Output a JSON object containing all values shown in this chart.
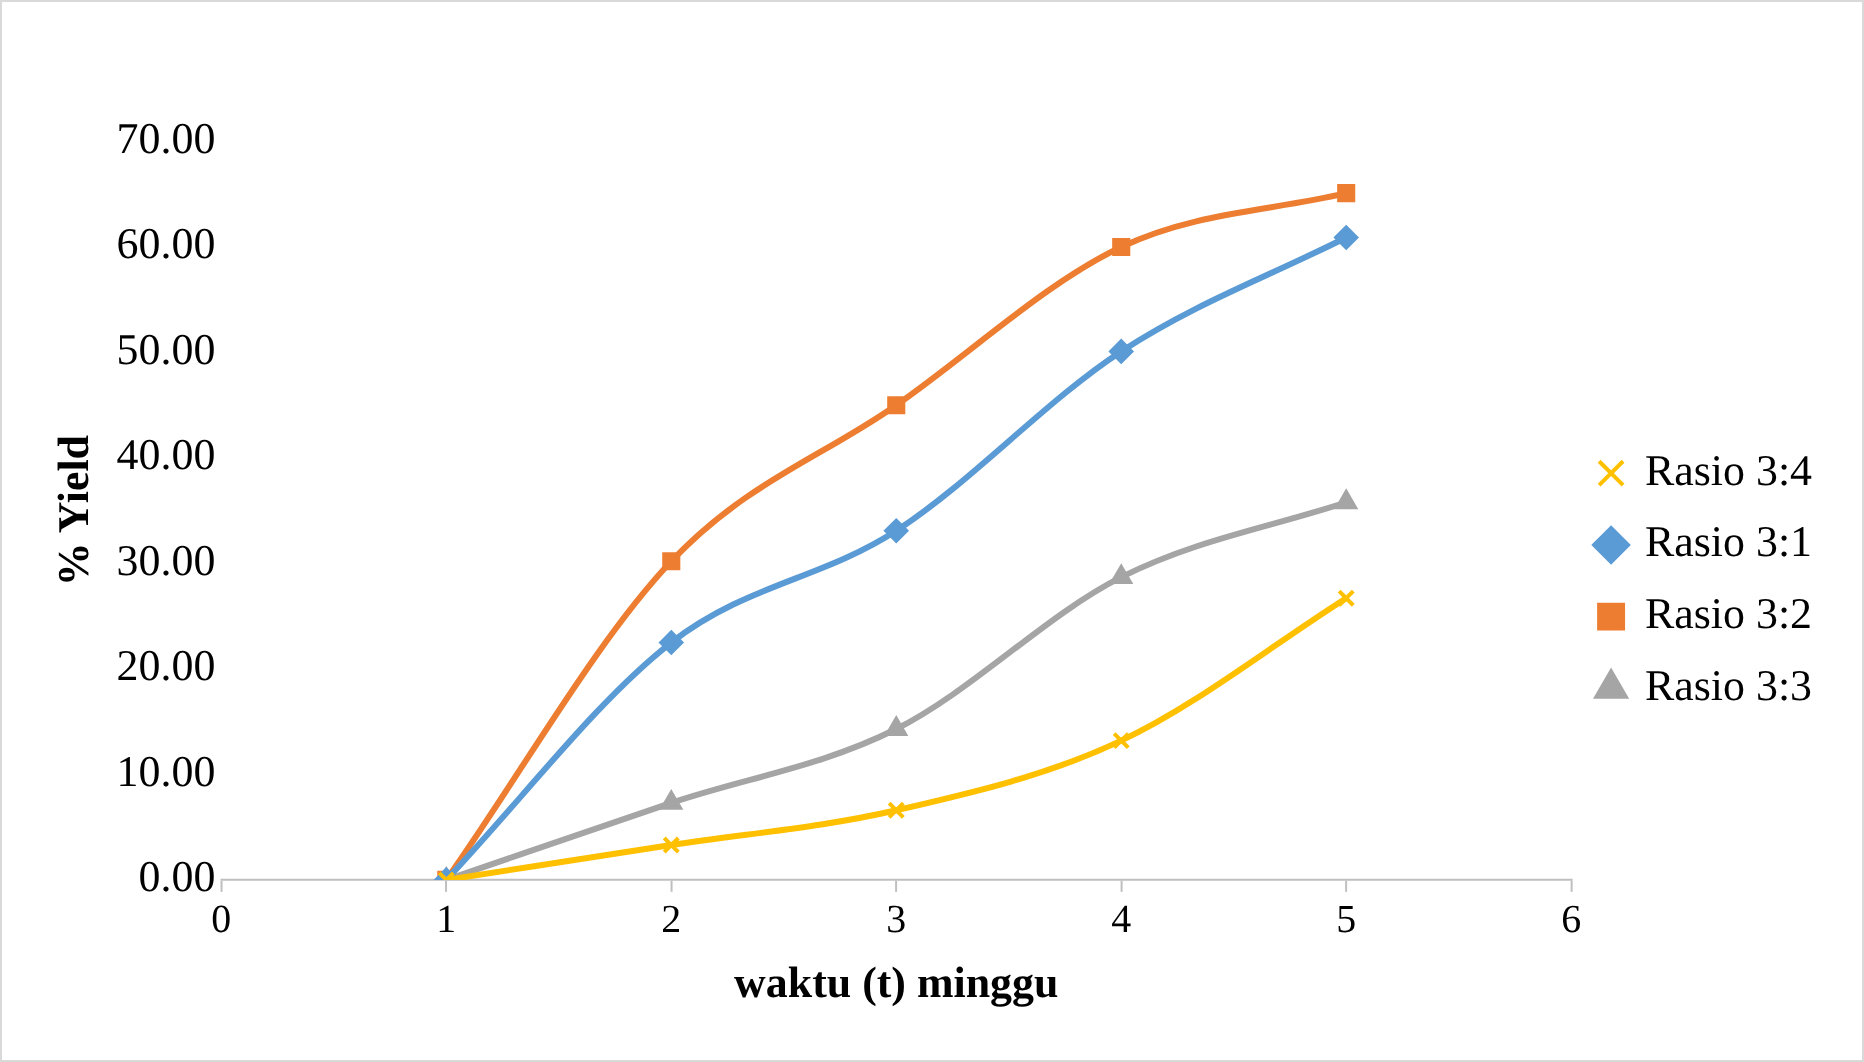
{
  "chart_data": {
    "type": "line",
    "xlabel": "waktu (t) minggu",
    "ylabel": "% Yield",
    "xlim": [
      0,
      6
    ],
    "xticks": [
      0,
      1,
      2,
      3,
      4,
      5,
      6
    ],
    "ylim": [
      0,
      70
    ],
    "yticks": [
      {
        "value": 0,
        "label": "0.00"
      },
      {
        "value": 10,
        "label": "10.00"
      },
      {
        "value": 20,
        "label": "20.00"
      },
      {
        "value": 30,
        "label": "30.00"
      },
      {
        "value": 40,
        "label": "40.00"
      },
      {
        "value": 50,
        "label": "50.00"
      },
      {
        "value": 60,
        "label": "60.00"
      },
      {
        "value": 70,
        "label": "70.00"
      }
    ],
    "grid": false,
    "legend": "right",
    "x": [
      1,
      2,
      3,
      4,
      5
    ],
    "series": [
      {
        "name": "Rasio 3:4",
        "color": "#ffc000",
        "marker": "cross",
        "values": [
          0,
          3.3,
          6.6,
          13.2,
          26.7
        ]
      },
      {
        "name": "Rasio 3:1",
        "color": "#5b9bd5",
        "marker": "diamond",
        "values": [
          0,
          22.5,
          33.1,
          50.1,
          60.9
        ]
      },
      {
        "name": "Rasio 3:2",
        "color": "#ed7d31",
        "marker": "square",
        "values": [
          0,
          30.2,
          45,
          60,
          65.1
        ]
      },
      {
        "name": "Rasio 3:3",
        "color": "#a5a5a5",
        "marker": "triangle",
        "values": [
          0,
          7.3,
          14.3,
          28.7,
          35.8
        ]
      }
    ]
  }
}
